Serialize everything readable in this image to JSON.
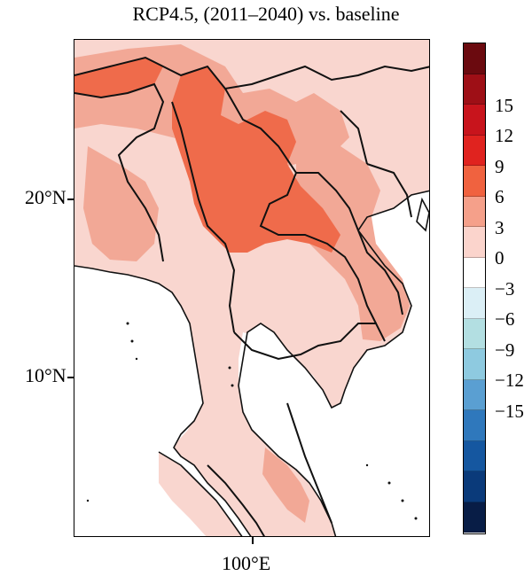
{
  "title": "RCP4.5, (2011–2040) vs. baseline",
  "axes": {
    "lat_labels": [
      "20°N",
      "10°N"
    ],
    "lon_labels": [
      "100°E"
    ]
  },
  "colorbar": {
    "labels": [
      "15",
      "12",
      "9",
      "6",
      "3",
      "0",
      "−3",
      "−6",
      "−9",
      "−12",
      "−15"
    ],
    "colors": [
      "#6b0a0f",
      "#9e0f16",
      "#c8141c",
      "#e0231f",
      "#f0623f",
      "#f5a08a",
      "#fbd4cc",
      "#ffffff",
      "#dbeff6",
      "#b3dfe2",
      "#8ecae0",
      "#5a9fd2",
      "#2f78bc",
      "#1557a0",
      "#0a3a7a",
      "#081d46"
    ],
    "map_colors": {
      "base": "#f9d6cf",
      "mid": "#f2a896",
      "high": "#ef6b4b",
      "ocean": "#ffffff",
      "border": "#111111"
    }
  }
}
